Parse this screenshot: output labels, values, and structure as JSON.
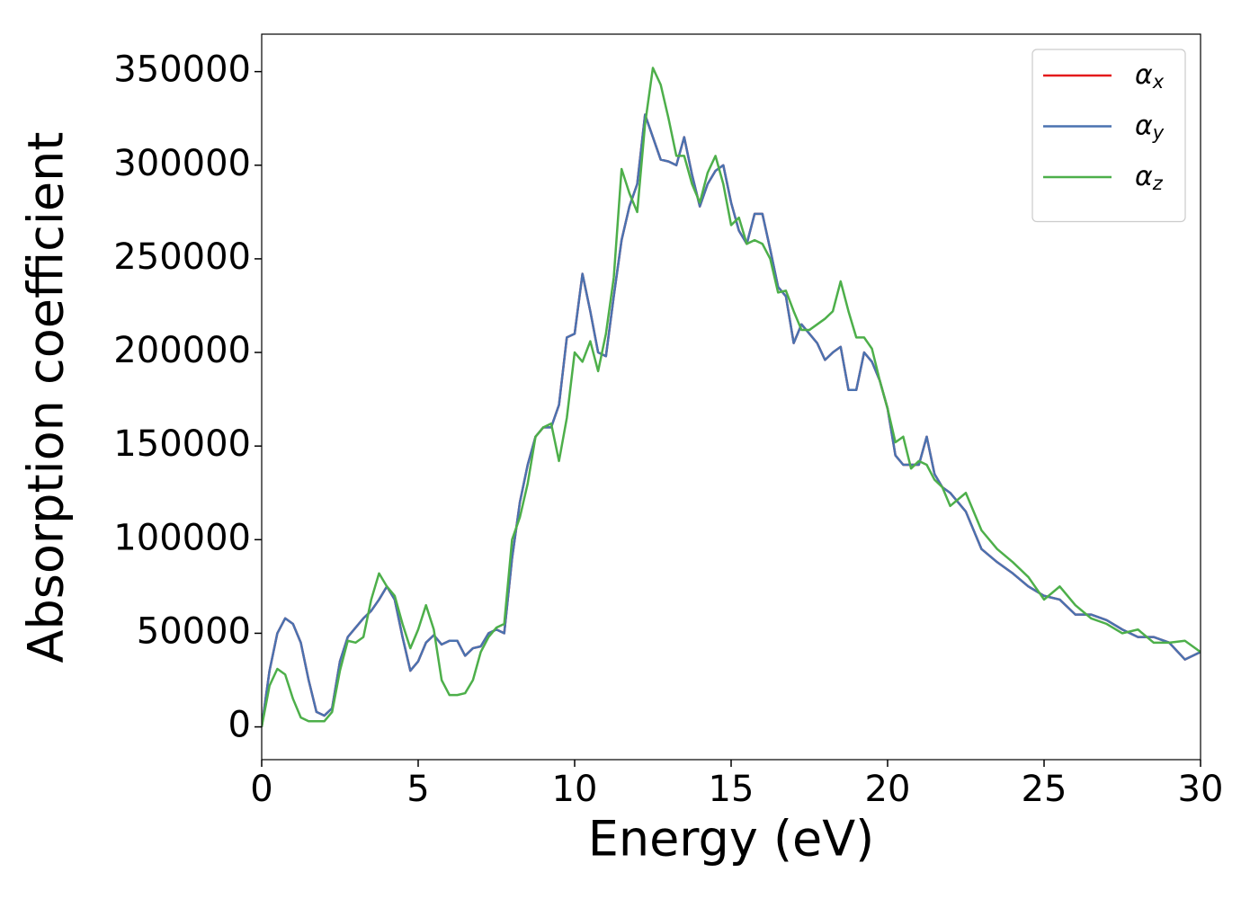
{
  "chart_data": {
    "type": "line",
    "x_label": "Energy (eV)",
    "y_label": "Absorption coefficient",
    "xlim": [
      0,
      30
    ],
    "ylim": [
      -17500,
      370000
    ],
    "xticks": [
      0,
      5,
      10,
      15,
      20,
      25,
      30
    ],
    "yticks": [
      0,
      50000,
      100000,
      150000,
      200000,
      250000,
      300000,
      350000
    ],
    "grid": false,
    "legend": "upper right",
    "x": [
      0,
      0.25,
      0.5,
      0.75,
      1,
      1.25,
      1.5,
      1.75,
      2,
      2.25,
      2.5,
      2.75,
      3,
      3.25,
      3.5,
      3.75,
      4,
      4.25,
      4.5,
      4.75,
      5,
      5.25,
      5.5,
      5.75,
      6,
      6.25,
      6.5,
      6.75,
      7,
      7.25,
      7.5,
      7.75,
      8,
      8.25,
      8.5,
      8.75,
      9,
      9.25,
      9.5,
      9.75,
      10,
      10.25,
      10.5,
      10.75,
      11,
      11.25,
      11.5,
      11.75,
      12,
      12.25,
      12.5,
      12.75,
      13,
      13.25,
      13.5,
      13.75,
      14,
      14.25,
      14.5,
      14.75,
      15,
      15.25,
      15.5,
      15.75,
      16,
      16.25,
      16.5,
      16.75,
      17,
      17.25,
      17.5,
      17.75,
      18,
      18.25,
      18.5,
      18.75,
      19,
      19.25,
      19.5,
      19.75,
      20,
      20.25,
      20.5,
      20.75,
      21,
      21.25,
      21.5,
      21.75,
      22,
      22.5,
      23,
      23.5,
      24,
      24.5,
      25,
      25.5,
      26,
      26.5,
      27,
      27.5,
      28,
      28.5,
      29,
      29.5,
      30
    ],
    "series": [
      {
        "name": "αx",
        "color": "#e41a1c",
        "values": [
          0,
          30000,
          50000,
          58000,
          55000,
          45000,
          25000,
          8000,
          6000,
          10000,
          35000,
          48000,
          53000,
          58000,
          62000,
          68000,
          75000,
          68000,
          48000,
          30000,
          35000,
          45000,
          49000,
          44000,
          46000,
          46000,
          38000,
          42000,
          43000,
          50000,
          52000,
          50000,
          90000,
          120000,
          140000,
          155000,
          160000,
          160000,
          172000,
          208000,
          210000,
          242000,
          222000,
          200000,
          198000,
          230000,
          260000,
          278000,
          290000,
          327000,
          315000,
          303000,
          302000,
          300000,
          315000,
          295000,
          278000,
          290000,
          297000,
          300000,
          280000,
          265000,
          258000,
          274000,
          274000,
          255000,
          235000,
          230000,
          205000,
          215000,
          210000,
          205000,
          196000,
          200000,
          203000,
          180000,
          180000,
          200000,
          195000,
          185000,
          170000,
          145000,
          140000,
          140000,
          140000,
          155000,
          135000,
          128000,
          125000,
          115000,
          95000,
          88000,
          82000,
          75000,
          70000,
          68000,
          60000,
          60000,
          57000,
          52000,
          48000,
          48000,
          45000,
          36000,
          40000
        ]
      },
      {
        "name": "αy",
        "color": "#4a72b0",
        "values": [
          0,
          30000,
          50000,
          58000,
          55000,
          45000,
          25000,
          8000,
          6000,
          10000,
          35000,
          48000,
          53000,
          58000,
          62000,
          68000,
          75000,
          68000,
          48000,
          30000,
          35000,
          45000,
          49000,
          44000,
          46000,
          46000,
          38000,
          42000,
          43000,
          50000,
          52000,
          50000,
          90000,
          120000,
          140000,
          155000,
          160000,
          160000,
          172000,
          208000,
          210000,
          242000,
          222000,
          200000,
          198000,
          230000,
          260000,
          278000,
          290000,
          327000,
          315000,
          303000,
          302000,
          300000,
          315000,
          295000,
          278000,
          290000,
          297000,
          300000,
          280000,
          265000,
          258000,
          274000,
          274000,
          255000,
          235000,
          230000,
          205000,
          215000,
          210000,
          205000,
          196000,
          200000,
          203000,
          180000,
          180000,
          200000,
          195000,
          185000,
          170000,
          145000,
          140000,
          140000,
          140000,
          155000,
          135000,
          128000,
          125000,
          115000,
          95000,
          88000,
          82000,
          75000,
          70000,
          68000,
          60000,
          60000,
          57000,
          52000,
          48000,
          48000,
          45000,
          36000,
          40000
        ]
      },
      {
        "name": "αz",
        "color": "#4daf4a",
        "values": [
          0,
          22000,
          31000,
          28000,
          15000,
          5000,
          3000,
          3000,
          3000,
          8000,
          30000,
          46000,
          45000,
          48000,
          68000,
          82000,
          75000,
          70000,
          55000,
          42000,
          52000,
          65000,
          52000,
          25000,
          17000,
          17000,
          18000,
          25000,
          40000,
          48000,
          53000,
          55000,
          100000,
          112000,
          130000,
          155000,
          160000,
          162000,
          142000,
          165000,
          200000,
          195000,
          206000,
          190000,
          210000,
          240000,
          298000,
          285000,
          275000,
          322000,
          352000,
          343000,
          325000,
          305000,
          305000,
          290000,
          280000,
          296000,
          305000,
          290000,
          268000,
          272000,
          258000,
          260000,
          258000,
          250000,
          232000,
          233000,
          222000,
          212000,
          212000,
          215000,
          218000,
          222000,
          238000,
          222000,
          208000,
          208000,
          202000,
          185000,
          170000,
          152000,
          155000,
          138000,
          142000,
          140000,
          132000,
          128000,
          118000,
          125000,
          105000,
          95000,
          88000,
          80000,
          68000,
          75000,
          65000,
          58000,
          55000,
          50000,
          52000,
          45000,
          45000,
          46000,
          40000
        ]
      }
    ]
  }
}
